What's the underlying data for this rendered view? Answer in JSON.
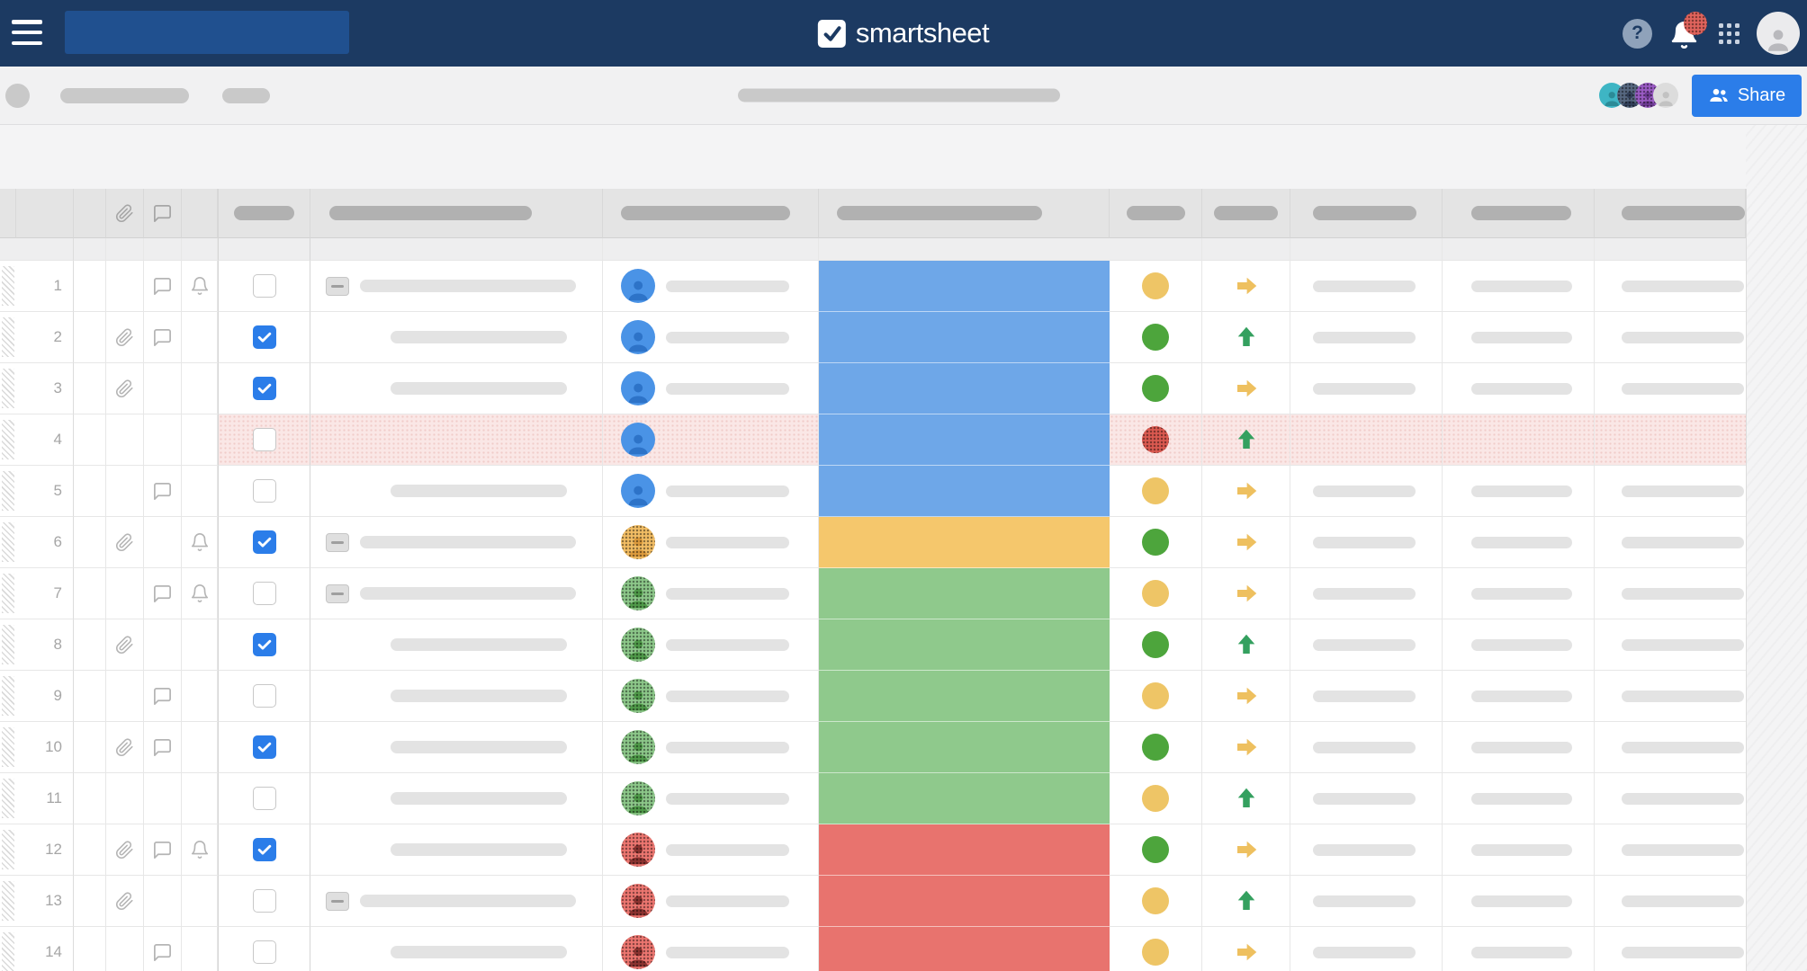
{
  "navbar": {
    "logo_text": "smartsheet",
    "right_icons": [
      "help",
      "notifications",
      "apps",
      "account"
    ],
    "has_notification_badge": true,
    "bg_color": "#1c3a62",
    "search_box_color": "#20508f"
  },
  "toolbar": {
    "share_label": "Share",
    "share_color": "#2b7de9",
    "collaborator_avatars": [
      "teal",
      "slate",
      "purple",
      "gray"
    ],
    "left_placeholders": [
      "circle",
      "pill-large",
      "pill-small"
    ],
    "center_placeholder": "pill"
  },
  "colors": {
    "bar": {
      "blue": "#6ea7e8",
      "orange": "#f5c76c",
      "green": "#8fc98c",
      "red": "#e8736e"
    },
    "avatar": {
      "blue": "#4a93e6",
      "orange": "#f2bd64",
      "green": "#8cc789",
      "red": "#ec7670",
      "teal": "#3eb5c4",
      "slate": "#56677f",
      "purple": "#9a5bc4",
      "gray": "#dcdcdc"
    },
    "avatar_glyph": {
      "blue": "#2d73c8",
      "orange": "#dd9b3d",
      "green": "#4f9a49",
      "red": "#8c3330",
      "teal": "#2b8b97",
      "slate": "#32405a",
      "purple": "#6d3b93",
      "gray": "#c2c2c2"
    },
    "status": {
      "yellow": "#eec566",
      "green": "#4da53c",
      "red": "#da5950"
    },
    "arrow": {
      "up": "#34a05f",
      "right": "#eec05f"
    },
    "checkbox_checked": "#2b7de9",
    "row_highlight": "#fae7e6"
  },
  "grid": {
    "header_icons": [
      "paperclip",
      "comment"
    ],
    "rows": [
      {
        "n": 1,
        "att": false,
        "com": true,
        "bell": true,
        "chk": false,
        "card": true,
        "av": "blue",
        "bar": "blue",
        "st": "yellow",
        "dot": false,
        "ar": "right",
        "hl": false,
        "task": true,
        "assign": true,
        "pills": true
      },
      {
        "n": 2,
        "att": true,
        "com": true,
        "bell": false,
        "chk": true,
        "card": false,
        "av": "blue",
        "bar": "blue",
        "st": "green",
        "dot": false,
        "ar": "up",
        "hl": false,
        "task": true,
        "assign": true,
        "pills": true
      },
      {
        "n": 3,
        "att": true,
        "com": false,
        "bell": false,
        "chk": true,
        "card": false,
        "av": "blue",
        "bar": "blue",
        "st": "green",
        "dot": false,
        "ar": "right",
        "hl": false,
        "task": true,
        "assign": true,
        "pills": true
      },
      {
        "n": 4,
        "att": false,
        "com": false,
        "bell": false,
        "chk": false,
        "card": false,
        "av": "blue",
        "bar": "blue",
        "st": "red",
        "dot": true,
        "ar": "up",
        "hl": true,
        "task": false,
        "assign": false,
        "pills": false
      },
      {
        "n": 5,
        "att": false,
        "com": true,
        "bell": false,
        "chk": false,
        "card": false,
        "av": "blue",
        "bar": "blue",
        "st": "yellow",
        "dot": false,
        "ar": "right",
        "hl": false,
        "task": true,
        "assign": true,
        "pills": true
      },
      {
        "n": 6,
        "att": true,
        "com": false,
        "bell": true,
        "chk": true,
        "card": true,
        "av": "orange",
        "bar": "orange",
        "st": "green",
        "dot": false,
        "ar": "right",
        "hl": false,
        "task": true,
        "assign": true,
        "pills": true
      },
      {
        "n": 7,
        "att": false,
        "com": true,
        "bell": true,
        "chk": false,
        "card": true,
        "av": "green",
        "bar": "green",
        "st": "yellow",
        "dot": false,
        "ar": "right",
        "hl": false,
        "task": true,
        "assign": true,
        "pills": true
      },
      {
        "n": 8,
        "att": true,
        "com": false,
        "bell": false,
        "chk": true,
        "card": false,
        "av": "green",
        "bar": "green",
        "st": "green",
        "dot": false,
        "ar": "up",
        "hl": false,
        "task": true,
        "assign": true,
        "pills": true
      },
      {
        "n": 9,
        "att": false,
        "com": true,
        "bell": false,
        "chk": false,
        "card": false,
        "av": "green",
        "bar": "green",
        "st": "yellow",
        "dot": false,
        "ar": "right",
        "hl": false,
        "task": true,
        "assign": true,
        "pills": true
      },
      {
        "n": 10,
        "att": true,
        "com": true,
        "bell": false,
        "chk": true,
        "card": false,
        "av": "green",
        "bar": "green",
        "st": "green",
        "dot": false,
        "ar": "right",
        "hl": false,
        "task": true,
        "assign": true,
        "pills": true
      },
      {
        "n": 11,
        "att": false,
        "com": false,
        "bell": false,
        "chk": false,
        "card": false,
        "av": "green",
        "bar": "green",
        "st": "yellow",
        "dot": false,
        "ar": "up",
        "hl": false,
        "task": true,
        "assign": true,
        "pills": true
      },
      {
        "n": 12,
        "att": true,
        "com": true,
        "bell": true,
        "chk": true,
        "card": false,
        "av": "red",
        "bar": "red",
        "st": "green",
        "dot": false,
        "ar": "right",
        "hl": false,
        "task": true,
        "assign": true,
        "pills": true
      },
      {
        "n": 13,
        "att": true,
        "com": false,
        "bell": false,
        "chk": false,
        "card": true,
        "av": "red",
        "bar": "red",
        "st": "yellow",
        "dot": false,
        "ar": "up",
        "hl": false,
        "task": true,
        "assign": true,
        "pills": true
      },
      {
        "n": 14,
        "att": false,
        "com": true,
        "bell": false,
        "chk": false,
        "card": false,
        "av": "red",
        "bar": "red",
        "st": "yellow",
        "dot": false,
        "ar": "right",
        "hl": false,
        "task": true,
        "assign": true,
        "pills": true
      }
    ]
  }
}
